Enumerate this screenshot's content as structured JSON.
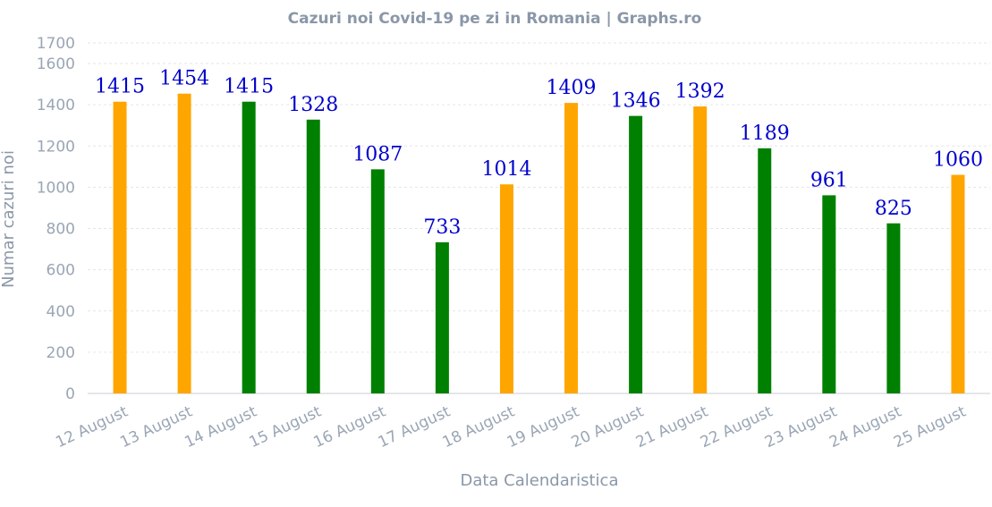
{
  "chart_data": {
    "type": "bar",
    "title": "Cazuri noi Covid-19 pe zi in Romania | Graphs.ro",
    "xlabel": "Data Calendaristica",
    "ylabel": "Numar cazuri noi",
    "ylim": [
      0,
      1700
    ],
    "yticks": [
      0,
      200,
      400,
      600,
      800,
      1000,
      1200,
      1400,
      1600,
      1700
    ],
    "grid": true,
    "categories": [
      "12 August",
      "13 August",
      "14 August",
      "15 August",
      "16 August",
      "17 August",
      "18 August",
      "19 August",
      "20 August",
      "21 August",
      "22 August",
      "23 August",
      "24 August",
      "25 August"
    ],
    "values": [
      1415,
      1454,
      1415,
      1328,
      1087,
      733,
      1014,
      1409,
      1346,
      1392,
      1189,
      961,
      825,
      1060
    ],
    "bar_colors": [
      "#ffa500",
      "#ffa500",
      "#008000",
      "#008000",
      "#008000",
      "#008000",
      "#ffa500",
      "#ffa500",
      "#008000",
      "#ffa500",
      "#008000",
      "#008000",
      "#008000",
      "#ffa500"
    ],
    "data_label_color": "#0000cc"
  }
}
